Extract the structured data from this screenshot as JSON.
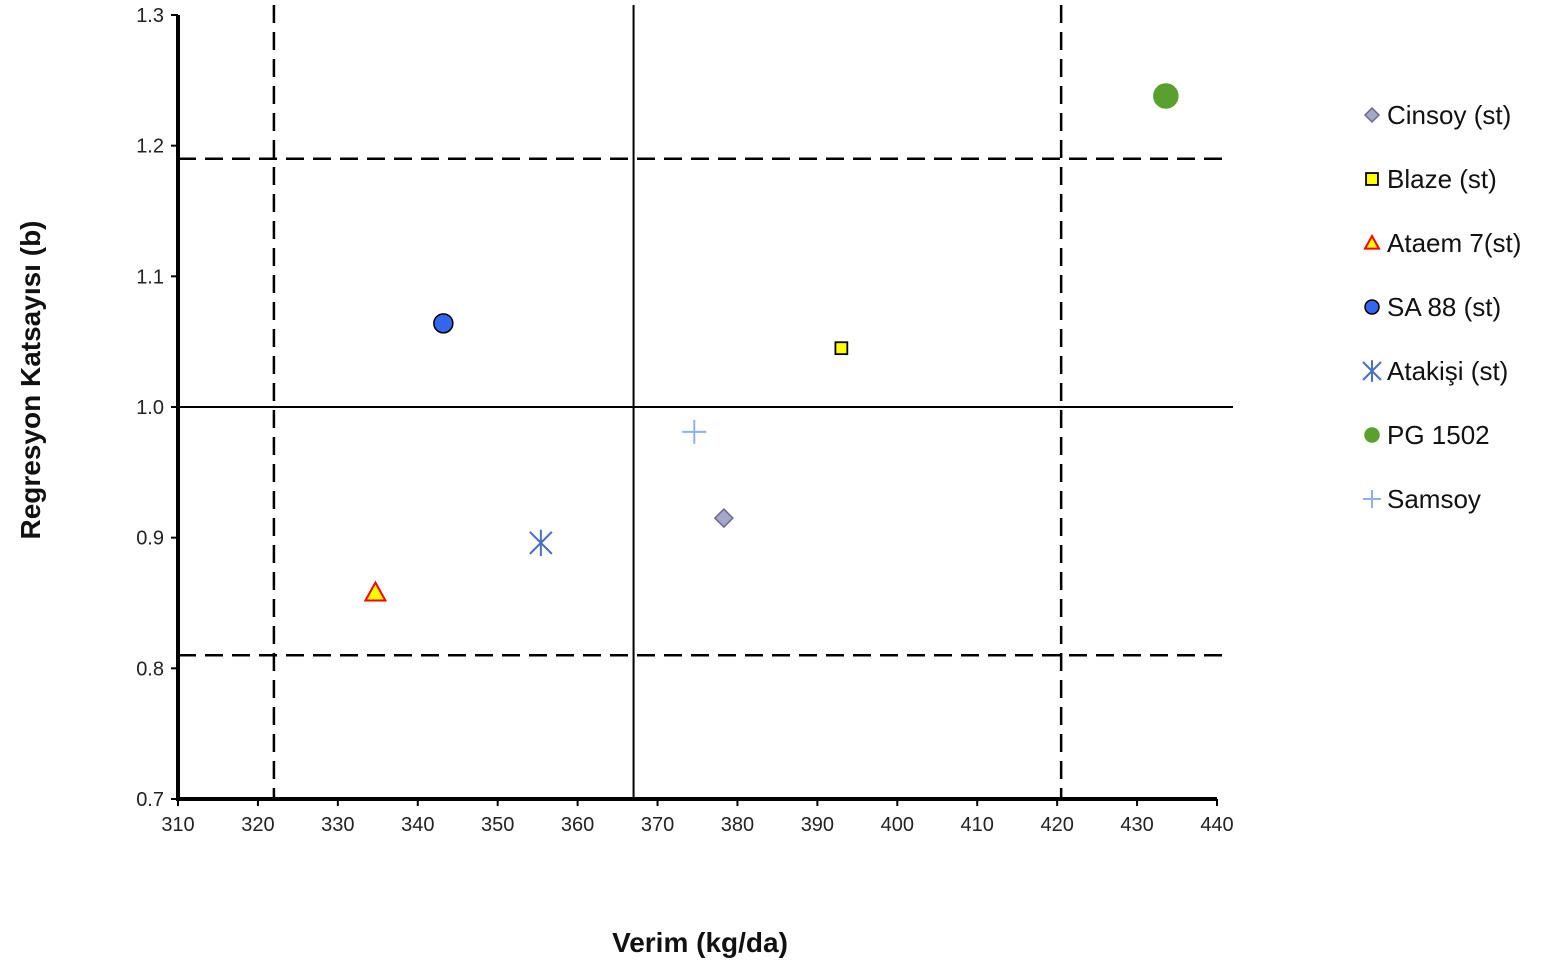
{
  "chart_data": {
    "type": "scatter",
    "xlabel": "Verim (kg/da)",
    "ylabel": "Regresyon Katsayısı (b)",
    "xlim": [
      310,
      440
    ],
    "ylim": [
      0.7,
      1.3
    ],
    "x_ticks": [
      "310",
      "320",
      "330",
      "340",
      "350",
      "360",
      "370",
      "380",
      "390",
      "400",
      "410",
      "420",
      "430",
      "440"
    ],
    "y_ticks": [
      "0.7",
      "0.8",
      "0.9",
      "1.0",
      "1.1",
      "1.2",
      "1.3"
    ],
    "grid": false,
    "legend_position": "right",
    "reference_lines": {
      "solid_vertical_x": 367,
      "solid_horizontal_y": 1.0,
      "dashed_vertical_x": [
        322,
        420.5
      ],
      "dashed_horizontal_y": [
        0.81,
        1.19
      ]
    },
    "series": [
      {
        "name": "Cinsoy (st)",
        "marker": "diamond",
        "color": "#a6a6c8",
        "stroke": "#6b6b8a",
        "x": 378.3,
        "y": 0.915
      },
      {
        "name": "Blaze (st)",
        "marker": "square",
        "color": "#ffff00",
        "stroke": "#000000",
        "x": 393.0,
        "y": 1.045
      },
      {
        "name": "Ataem 7(st)",
        "marker": "triangle",
        "color": "#ffff00",
        "stroke": "#ff0000",
        "x": 334.7,
        "y": 0.858
      },
      {
        "name": "SA 88 (st)",
        "marker": "circle",
        "color": "#3366ee",
        "stroke": "#000000",
        "x": 343.2,
        "y": 1.064
      },
      {
        "name": "Atakişi (st)",
        "marker": "asterisk",
        "color": "#4a6fc4",
        "stroke": "#4a6fc4",
        "x": 355.4,
        "y": 0.896
      },
      {
        "name": "PG 1502",
        "marker": "circle",
        "color": "#5aa02c",
        "stroke": "#5aa02c",
        "x": 433.6,
        "y": 1.238
      },
      {
        "name": "Samsoy",
        "marker": "plus",
        "color": "#8fb0e8",
        "stroke": "#8fb0e8",
        "x": 374.6,
        "y": 0.981
      }
    ]
  }
}
